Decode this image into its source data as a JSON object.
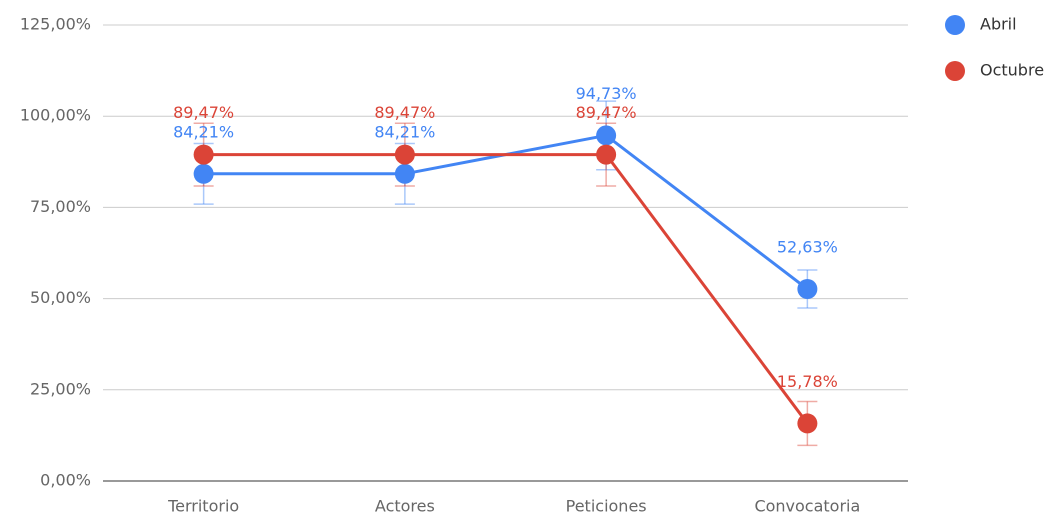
{
  "chart_data": {
    "type": "line",
    "categories": [
      "Territorio",
      "Actores",
      "Peticiones",
      "Convocatoria"
    ],
    "series": [
      {
        "name": "Abril",
        "color": "#4285f4",
        "values": [
          84.21,
          84.21,
          94.73,
          52.63
        ],
        "value_labels": [
          "84,21%",
          "84,21%",
          "94,73%",
          "52,63%"
        ],
        "errors": [
          8.3,
          8.3,
          9.4,
          5.2
        ]
      },
      {
        "name": "Octubre",
        "color": "#db4437",
        "values": [
          89.47,
          89.47,
          89.47,
          15.78
        ],
        "value_labels": [
          "89,47%",
          "89,47%",
          "89,47%",
          "15,78%"
        ],
        "errors": [
          8.6,
          8.6,
          8.6,
          6
        ]
      }
    ],
    "ylim": [
      0,
      125
    ],
    "yticks": [
      {
        "value": 0,
        "label": "0,00%"
      },
      {
        "value": 25,
        "label": "25,00%"
      },
      {
        "value": 50,
        "label": "50,00%"
      },
      {
        "value": 75,
        "label": "75,00%"
      },
      {
        "value": 100,
        "label": "100,00%"
      },
      {
        "value": 125,
        "label": "125,00%"
      }
    ],
    "grid": true,
    "legend": "right"
  }
}
